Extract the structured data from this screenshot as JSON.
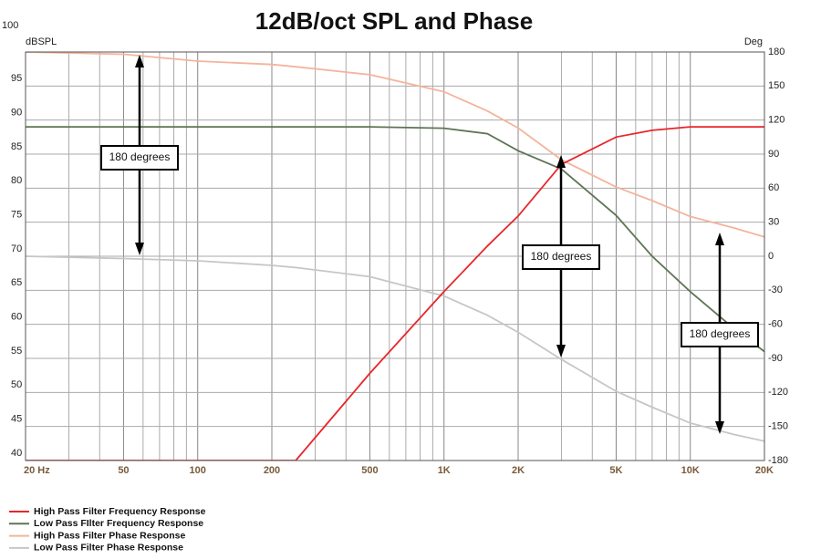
{
  "chart_data": {
    "type": "line",
    "title": "12dB/oct SPL and Phase",
    "y_label": "dBSPL",
    "y2_label": "Deg",
    "log_x": true,
    "grid": true,
    "legend": "bottom-left",
    "x": [
      20,
      50,
      100,
      200,
      250,
      500,
      1000,
      1500,
      2000,
      3000,
      5000,
      7000,
      10000,
      15000,
      20000
    ],
    "xlim": [
      20,
      20000
    ],
    "xticks": [
      {
        "value": 20,
        "label": "20  Hz"
      },
      50,
      100,
      200,
      500,
      {
        "value": 1000,
        "label": "1K"
      },
      {
        "value": 2000,
        "label": "2K"
      },
      {
        "value": 5000,
        "label": "5K"
      },
      {
        "value": 10000,
        "label": "10K"
      },
      {
        "value": 20000,
        "label": "20K"
      }
    ],
    "xminor_ticks": [
      30,
      40,
      60,
      70,
      80,
      90,
      300,
      400,
      600,
      700,
      800,
      900,
      3000,
      4000,
      6000,
      7000,
      8000,
      9000
    ],
    "ylim": [
      40,
      100
    ],
    "yticks": [
      40,
      45,
      50,
      55,
      60,
      65,
      70,
      75,
      80,
      85,
      90,
      95,
      100
    ],
    "y2lim": [
      -180,
      180
    ],
    "y2ticks": [
      -180,
      -150,
      -120,
      -90,
      -60,
      -30,
      0,
      30,
      60,
      90,
      120,
      150,
      180
    ],
    "series": [
      {
        "name": "High Pass Filter Frequency Response",
        "color": "#e8262b",
        "values": [
          40,
          40,
          40,
          40,
          40,
          52.8,
          64.8,
          71.5,
          75.9,
          83.5,
          87.5,
          88.5,
          89,
          89,
          89
        ]
      },
      {
        "name": "Low Pass FIlter Frequency Response",
        "color": "#5e7555",
        "values": [
          89,
          89,
          89,
          89,
          89,
          89,
          88.8,
          88,
          85.5,
          82.8,
          76,
          70,
          64.8,
          59.4,
          56
        ]
      },
      {
        "name": "High Pass Filter Phase Response",
        "color": "#f4b49c",
        "axis": "y2",
        "values": [
          180,
          178,
          172,
          169,
          167,
          160,
          145,
          128,
          113,
          85,
          61,
          49,
          35,
          25,
          17
        ]
      },
      {
        "name": "Low Pass Filter Phase Response",
        "color": "#c5c8c2",
        "axis": "y2",
        "values": [
          0,
          -2,
          -4,
          -8,
          -10,
          -18,
          -35,
          -52,
          -67,
          -91,
          -119,
          -133,
          -147,
          -157,
          -163
        ]
      }
    ],
    "annotations": [
      "180 degrees",
      "180 degrees",
      "180 degrees"
    ]
  }
}
